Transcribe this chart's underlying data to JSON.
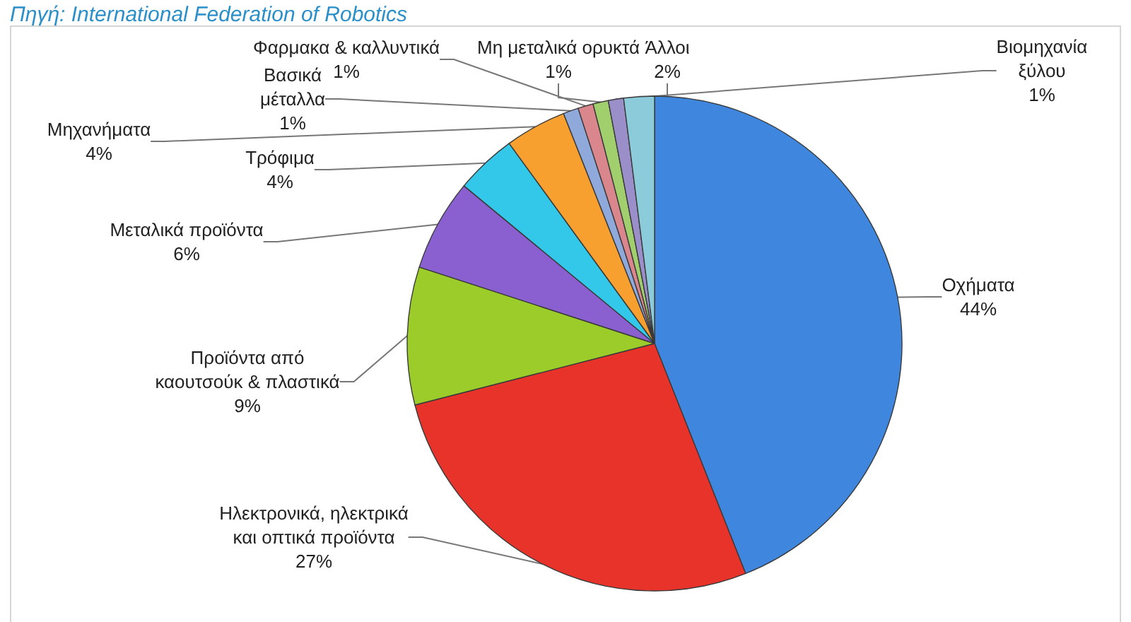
{
  "chart_data": {
    "type": "pie",
    "annotations": [
      "Πηγή: International Federation of Robotics"
    ],
    "categories": [
      "Οχήματα",
      "Ηλεκτρονικά, ηλεκτρικά και οπτικά προϊόντα",
      "Προϊόντα από καουτσούκ & πλαστικά",
      "Μεταλικά προϊόντα",
      "Τρόφιμα",
      "Μηχανήματα",
      "Βασικά μέταλλα",
      "Φαρμακα & καλλυντικά",
      "Μη μεταλικά ορυκτά",
      "Βιομηχανία ξύλου",
      "Άλλοι"
    ],
    "values": [
      44,
      27,
      9,
      6,
      4,
      4,
      1,
      1,
      1,
      1,
      2
    ],
    "value_labels": [
      "44%",
      "27%",
      "9%",
      "6%",
      "4%",
      "4%",
      "1%",
      "1%",
      "1%",
      "1%",
      "2%"
    ],
    "colors": [
      "#3f87de",
      "#e8332b",
      "#9ccc2a",
      "#8a5fd0",
      "#33c8ea",
      "#f7a030",
      "#8fa9da",
      "#d9868c",
      "#a2cf6e",
      "#9a8fc9",
      "#8ccbd9"
    ]
  }
}
